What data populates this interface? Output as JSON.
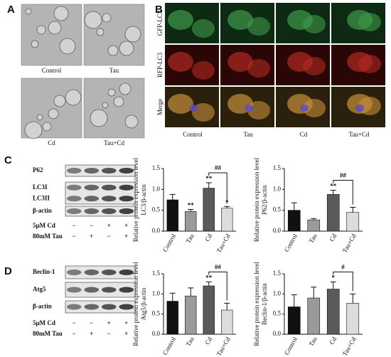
{
  "panels": {
    "a": "A",
    "b": "B",
    "c": "C",
    "d": "D"
  },
  "panel_a": {
    "captions": [
      "Control",
      "Tau",
      "Cd",
      "Tau+Cd"
    ]
  },
  "panel_b": {
    "rows": [
      "GFP-LC3",
      "RFP-LC3",
      "Merge"
    ],
    "columns": [
      "Control",
      "Tau",
      "Cd",
      "Tau+Cd"
    ]
  },
  "blot_c": {
    "bands": [
      "P62",
      "LC3I",
      "LC3II",
      "β-actin"
    ],
    "treatments": [
      {
        "label": "5μM Cd",
        "signs": [
          "−",
          "−",
          "+",
          "+"
        ]
      },
      {
        "label": "80mM Tau",
        "signs": [
          "−",
          "+",
          "−",
          "+"
        ]
      }
    ]
  },
  "blot_d": {
    "bands": [
      "Beclin-1",
      "Atg5",
      "β-actin"
    ],
    "treatments": [
      {
        "label": "5μM Cd",
        "signs": [
          "−",
          "−",
          "+",
          "+"
        ]
      },
      {
        "label": "80mM Tau",
        "signs": [
          "−",
          "+",
          "−",
          "+"
        ]
      }
    ]
  },
  "chart_data": [
    {
      "type": "bar",
      "y_label": "Relative protein expression level",
      "y_sublabel": "LC3/β-actin",
      "categories": [
        "Control",
        "Tau",
        "Cd",
        "Tau+Cd"
      ],
      "values": [
        0.75,
        0.47,
        1.03,
        0.55
      ],
      "errors": [
        0.13,
        0.05,
        0.13,
        0.04
      ],
      "colors": [
        "#111111",
        "#9a9a9a",
        "#5a5a5a",
        "#dcdcdc"
      ],
      "markers": [
        null,
        "**",
        "**",
        "*"
      ],
      "bracket": "##",
      "ylim": [
        0,
        1.5
      ],
      "yticks": [
        {
          "value": 0,
          "label": "0.0"
        },
        0.5,
        {
          "value": 1,
          "label": "1.0"
        },
        1.5
      ]
    },
    {
      "type": "bar",
      "y_label": "Relative protein expression level",
      "y_sublabel": "P62/β-actin",
      "categories": [
        "Control",
        "Tau",
        "Cd",
        "Tau+Cd"
      ],
      "values": [
        0.5,
        0.27,
        0.88,
        0.45
      ],
      "errors": [
        0.18,
        0.03,
        0.1,
        0.12
      ],
      "colors": [
        "#111111",
        "#9a9a9a",
        "#5a5a5a",
        "#dcdcdc"
      ],
      "markers": [
        null,
        null,
        "**",
        null
      ],
      "bracket": "##",
      "ylim": [
        0,
        1.5
      ],
      "yticks": [
        {
          "value": 0,
          "label": "0.0"
        },
        0.5,
        {
          "value": 1,
          "label": "1.0"
        },
        1.5
      ]
    },
    {
      "type": "bar",
      "y_label": "Relative protein expression level",
      "y_sublabel": "Atg5/β-actin",
      "categories": [
        "Control",
        "Tau",
        "Cd",
        "Tau+Cd"
      ],
      "values": [
        0.82,
        0.95,
        1.2,
        0.6
      ],
      "errors": [
        0.2,
        0.2,
        0.1,
        0.17
      ],
      "colors": [
        "#111111",
        "#9a9a9a",
        "#5a5a5a",
        "#dcdcdc"
      ],
      "markers": [
        null,
        null,
        "**",
        null
      ],
      "bracket": "##",
      "ylim": [
        0,
        1.5
      ],
      "yticks": [
        {
          "value": 0,
          "label": "0.0"
        },
        0.5,
        {
          "value": 1,
          "label": "1.0"
        },
        1.5
      ]
    },
    {
      "type": "bar",
      "y_label": "Relative protein expression level",
      "y_sublabel": "Beclin-1/β-actin",
      "categories": [
        "Control",
        "Tau",
        "Cd",
        "Tau+Cd"
      ],
      "values": [
        0.68,
        0.9,
        1.12,
        0.77
      ],
      "errors": [
        0.3,
        0.27,
        0.18,
        0.23
      ],
      "colors": [
        "#111111",
        "#9a9a9a",
        "#5a5a5a",
        "#dcdcdc"
      ],
      "markers": [
        null,
        null,
        "*",
        null
      ],
      "bracket": "#",
      "ylim": [
        0,
        1.5
      ],
      "yticks": [
        {
          "value": 0,
          "label": "0.0"
        },
        0.5,
        {
          "value": 1,
          "label": "1.0"
        },
        1.5
      ]
    }
  ]
}
